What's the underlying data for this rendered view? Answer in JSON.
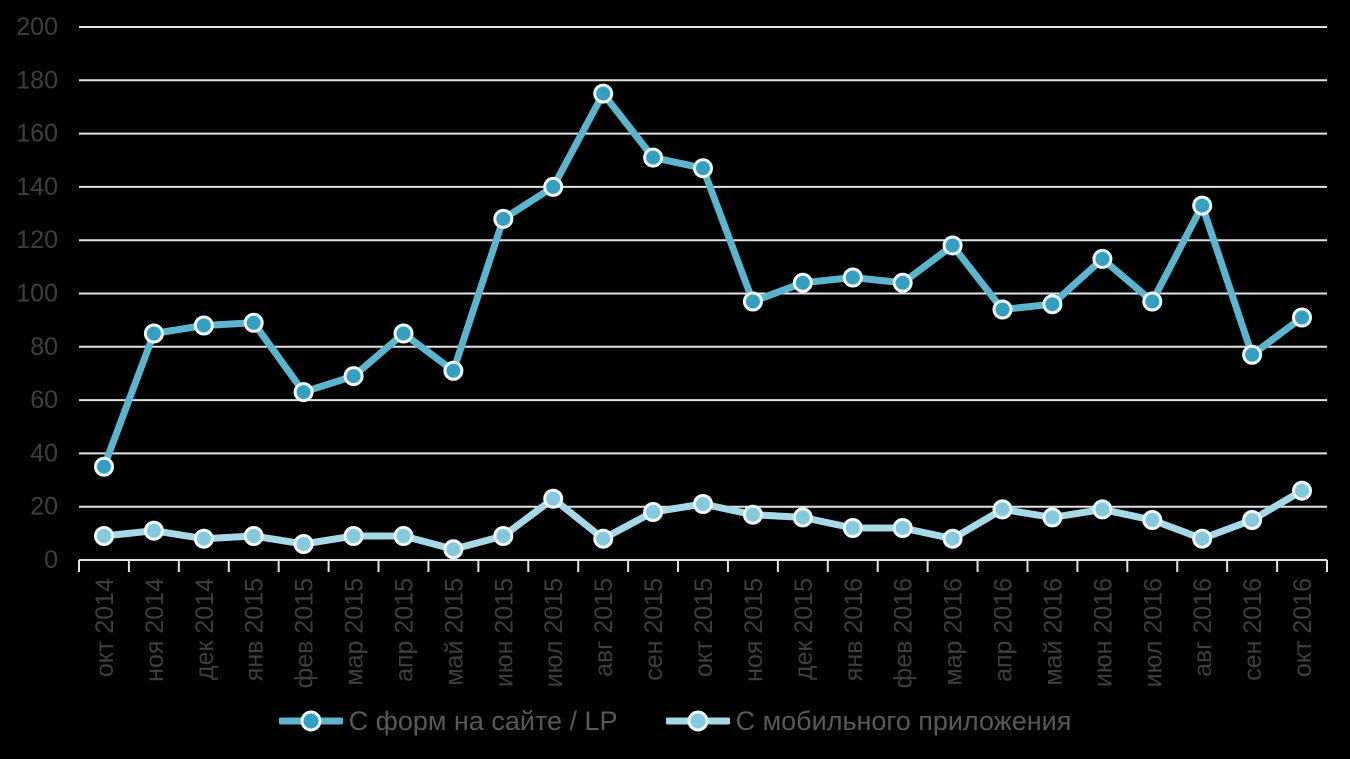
{
  "chart_data": {
    "type": "line",
    "title": "",
    "xlabel": "",
    "ylabel": "",
    "categories": [
      "окт 2014",
      "ноя 2014",
      "дек 2014",
      "янв 2015",
      "фев 2015",
      "мар 2015",
      "апр 2015",
      "май 2015",
      "июн 2015",
      "июл 2015",
      "авг 2015",
      "сен 2015",
      "окт 2015",
      "ноя 2015",
      "дек 2015",
      "янв 2016",
      "фев 2016",
      "мар 2016",
      "апр 2016",
      "май 2016",
      "июн 2016",
      "июл 2016",
      "авг 2016",
      "сен 2016",
      "окт 2016"
    ],
    "series": [
      {
        "name": "С форм на сайте / LP",
        "values": [
          35,
          85,
          88,
          89,
          63,
          69,
          85,
          71,
          128,
          140,
          175,
          151,
          147,
          97,
          104,
          106,
          104,
          118,
          94,
          96,
          113,
          97,
          133,
          77,
          91
        ],
        "line_color": "#5bb5ce",
        "marker_color": "#33a0c1"
      },
      {
        "name": "С мобильного приложения",
        "values": [
          9,
          11,
          8,
          9,
          6,
          9,
          9,
          4,
          9,
          23,
          8,
          18,
          21,
          17,
          16,
          12,
          12,
          8,
          19,
          16,
          19,
          15,
          8,
          15,
          26
        ],
        "line_color": "#a6d9e7",
        "marker_color": "#84c9de"
      }
    ],
    "ylim": [
      0,
      200
    ],
    "ytick_step": 20,
    "yticks": [
      "0",
      "20",
      "40",
      "60",
      "80",
      "100",
      "120",
      "140",
      "160",
      "180",
      "200"
    ],
    "grid": "horizontal gridlines",
    "legend_position": "bottom center",
    "x_tick_label_rotation_deg": 90
  },
  "colors": {
    "background": "#000000",
    "gridline": "#e3e3e3",
    "axis_tick_label": "#3f3f3f",
    "legend_text": "#595959",
    "marker_ring": "#eef7fa"
  }
}
